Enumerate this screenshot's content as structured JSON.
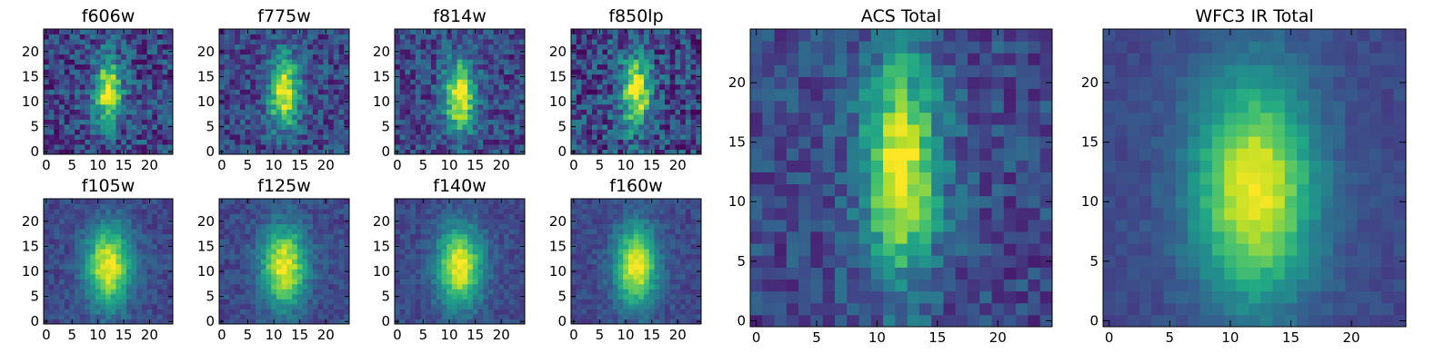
{
  "chart_data": [
    {
      "type": "heatmap",
      "title": "f606w",
      "x_ticks": [
        "0",
        "5",
        "10",
        "15",
        "20"
      ],
      "y_ticks": [
        "0",
        "5",
        "10",
        "15",
        "20"
      ],
      "xlim": [
        0,
        24
      ],
      "ylim": [
        0,
        24
      ],
      "colormap": "viridis",
      "peak": [
        12,
        12
      ],
      "sigma": [
        1.8,
        4.5
      ],
      "noise": 0.4
    },
    {
      "type": "heatmap",
      "title": "f775w",
      "x_ticks": [
        "0",
        "5",
        "10",
        "15",
        "20"
      ],
      "y_ticks": [
        "0",
        "5",
        "10",
        "15",
        "20"
      ],
      "xlim": [
        0,
        24
      ],
      "ylim": [
        0,
        24
      ],
      "colormap": "viridis",
      "peak": [
        12,
        12
      ],
      "sigma": [
        2.0,
        5.0
      ],
      "noise": 0.35
    },
    {
      "type": "heatmap",
      "title": "f814w",
      "x_ticks": [
        "0",
        "5",
        "10",
        "15",
        "20"
      ],
      "y_ticks": [
        "0",
        "5",
        "10",
        "15",
        "20"
      ],
      "xlim": [
        0,
        24
      ],
      "ylim": [
        0,
        24
      ],
      "colormap": "viridis",
      "peak": [
        12,
        11
      ],
      "sigma": [
        2.0,
        5.0
      ],
      "noise": 0.35
    },
    {
      "type": "heatmap",
      "title": "f850lp",
      "x_ticks": [
        "0",
        "5",
        "10",
        "15",
        "20"
      ],
      "y_ticks": [
        "0",
        "5",
        "10",
        "15",
        "20"
      ],
      "xlim": [
        0,
        24
      ],
      "ylim": [
        0,
        24
      ],
      "colormap": "viridis",
      "peak": [
        12,
        12
      ],
      "sigma": [
        2.0,
        5.0
      ],
      "noise": 0.45
    },
    {
      "type": "heatmap",
      "title": "f105w",
      "x_ticks": [
        "0",
        "5",
        "10",
        "15",
        "20"
      ],
      "y_ticks": [
        "0",
        "5",
        "10",
        "15",
        "20"
      ],
      "xlim": [
        0,
        24
      ],
      "ylim": [
        0,
        24
      ],
      "colormap": "viridis",
      "peak": [
        12,
        11
      ],
      "sigma": [
        3.0,
        5.5
      ],
      "noise": 0.18
    },
    {
      "type": "heatmap",
      "title": "f125w",
      "x_ticks": [
        "0",
        "5",
        "10",
        "15",
        "20"
      ],
      "y_ticks": [
        "0",
        "5",
        "10",
        "15",
        "20"
      ],
      "xlim": [
        0,
        24
      ],
      "ylim": [
        0,
        24
      ],
      "colormap": "viridis",
      "peak": [
        12,
        11
      ],
      "sigma": [
        3.0,
        5.5
      ],
      "noise": 0.18
    },
    {
      "type": "heatmap",
      "title": "f140w",
      "x_ticks": [
        "0",
        "5",
        "10",
        "15",
        "20"
      ],
      "y_ticks": [
        "0",
        "5",
        "10",
        "15",
        "20"
      ],
      "xlim": [
        0,
        24
      ],
      "ylim": [
        0,
        24
      ],
      "colormap": "viridis",
      "peak": [
        12,
        11
      ],
      "sigma": [
        3.0,
        5.5
      ],
      "noise": 0.16
    },
    {
      "type": "heatmap",
      "title": "f160w",
      "x_ticks": [
        "0",
        "5",
        "10",
        "15",
        "20"
      ],
      "y_ticks": [
        "0",
        "5",
        "10",
        "15",
        "20"
      ],
      "xlim": [
        0,
        24
      ],
      "ylim": [
        0,
        24
      ],
      "colormap": "viridis",
      "peak": [
        12,
        11
      ],
      "sigma": [
        2.8,
        5.5
      ],
      "noise": 0.16
    },
    {
      "type": "heatmap",
      "title": "ACS Total",
      "x_ticks": [
        "0",
        "5",
        "10",
        "15",
        "20"
      ],
      "y_ticks": [
        "0",
        "5",
        "10",
        "15",
        "20"
      ],
      "xlim": [
        0,
        24
      ],
      "ylim": [
        0,
        24
      ],
      "colormap": "viridis",
      "peak": [
        12,
        13
      ],
      "sigma": [
        2.2,
        6.5
      ],
      "noise": 0.28
    },
    {
      "type": "heatmap",
      "title": "WFC3 IR Total",
      "x_ticks": [
        "0",
        "5",
        "10",
        "15",
        "20"
      ],
      "y_ticks": [
        "0",
        "5",
        "10",
        "15",
        "20"
      ],
      "xlim": [
        0,
        24
      ],
      "ylim": [
        0,
        24
      ],
      "colormap": "viridis",
      "peak": [
        12,
        11
      ],
      "sigma": [
        3.5,
        6.5
      ],
      "noise": 0.1
    }
  ]
}
